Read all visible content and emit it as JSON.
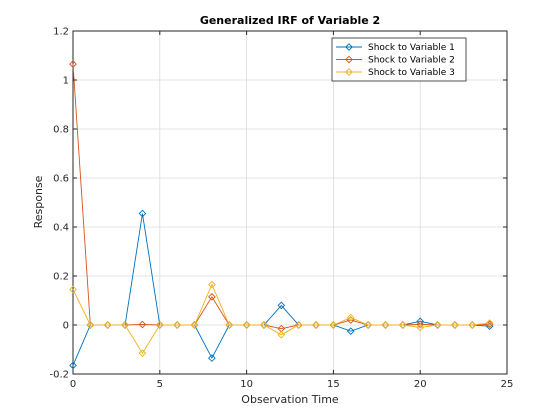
{
  "chart_data": {
    "type": "line",
    "title": "Generalized IRF of Variable 2",
    "xlabel": "Observation Time",
    "ylabel": "Response",
    "xlim": [
      0,
      25
    ],
    "ylim": [
      -0.2,
      1.2
    ],
    "xticks": [
      0,
      5,
      10,
      15,
      20,
      25
    ],
    "yticks": [
      -0.2,
      0,
      0.2,
      0.4,
      0.6,
      0.8,
      1,
      1.2
    ],
    "xtick_labels": [
      "0",
      "5",
      "10",
      "15",
      "20",
      "25"
    ],
    "ytick_labels": [
      "-0.2",
      "0",
      "0.2",
      "0.4",
      "0.6",
      "0.8",
      "1",
      "1.2"
    ],
    "grid": true,
    "legend_position": "top-right",
    "x": [
      0,
      1,
      2,
      3,
      4,
      5,
      6,
      7,
      8,
      9,
      10,
      11,
      12,
      13,
      14,
      15,
      16,
      17,
      18,
      19,
      20,
      21,
      22,
      23,
      24
    ],
    "series": [
      {
        "name": "Shock to Variable 1",
        "color": "#0072bd",
        "marker": "diamond",
        "values": [
          -0.165,
          0,
          0,
          0,
          0.455,
          0,
          0,
          0,
          -0.135,
          0,
          0,
          0,
          0.08,
          0,
          0,
          0,
          -0.025,
          0,
          0,
          0,
          0.015,
          0,
          0,
          0,
          -0.005
        ]
      },
      {
        "name": "Shock to Variable 2",
        "color": "#d95319",
        "marker": "diamond",
        "values": [
          1.065,
          0,
          0,
          0,
          0.002,
          0,
          0,
          0,
          0.115,
          0,
          0,
          0,
          -0.015,
          0,
          0,
          0,
          0.02,
          0,
          0,
          0,
          0.003,
          0,
          0,
          0,
          0.003
        ]
      },
      {
        "name": "Shock to Variable 3",
        "color": "#edb120",
        "marker": "diamond",
        "values": [
          0.145,
          0,
          0,
          0,
          -0.115,
          0,
          0,
          0,
          0.165,
          0,
          0,
          0,
          -0.04,
          0,
          0,
          0,
          0.03,
          0,
          0,
          0,
          -0.01,
          0,
          0,
          0,
          0.008
        ]
      }
    ]
  }
}
